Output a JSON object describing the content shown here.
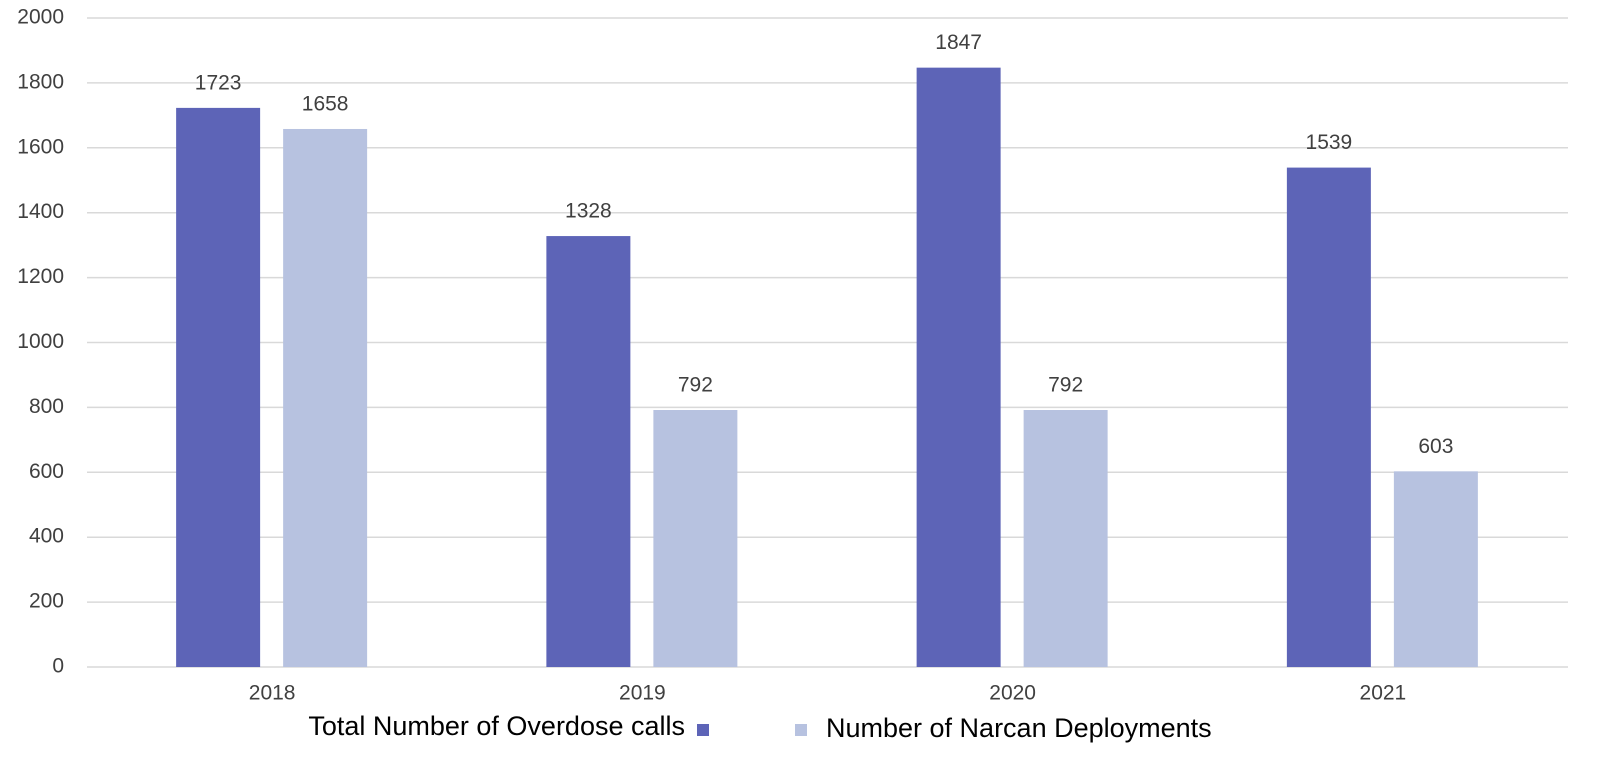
{
  "chart_data": {
    "type": "bar",
    "categories": [
      "2018",
      "2019",
      "2020",
      "2021"
    ],
    "series": [
      {
        "name": "Total Number of Overdose calls",
        "color": "#5d64b7",
        "values": [
          1723,
          1328,
          1847,
          1539
        ]
      },
      {
        "name": "Number of Narcan Deployments",
        "color": "#b7c2e0",
        "values": [
          1658,
          792,
          792,
          603
        ]
      }
    ],
    "ylim": [
      0,
      2000
    ],
    "yticks": [
      0,
      200,
      400,
      600,
      800,
      1000,
      1200,
      1400,
      1600,
      1800,
      2000
    ],
    "grid": true
  }
}
